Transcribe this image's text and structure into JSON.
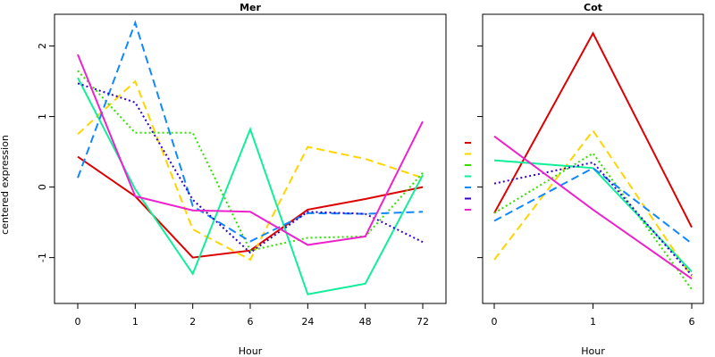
{
  "chart_data": {
    "type": "line",
    "ylabel": "centered expression",
    "ylim": [
      -1.65,
      2.45
    ],
    "yticks": [
      -1,
      0,
      1,
      2
    ],
    "legend_position": "between-panels",
    "panels": [
      {
        "title": "Mer",
        "xlabel": "Hour",
        "categories": [
          "0",
          "1",
          "2",
          "6",
          "24",
          "48",
          "72"
        ],
        "series": [
          {
            "color": "#dd0000",
            "dash": "solid",
            "values": [
              0.43,
              -0.13,
              -1.0,
              -0.9,
              -0.32,
              -0.17,
              0.0
            ]
          },
          {
            "color": "#ffd400",
            "dash": "long",
            "values": [
              0.75,
              1.5,
              -0.6,
              -1.03,
              0.57,
              0.4,
              0.13
            ]
          },
          {
            "color": "#33dd00",
            "dash": "dot",
            "values": [
              1.65,
              0.77,
              0.77,
              -0.9,
              -0.72,
              -0.7,
              0.2
            ]
          },
          {
            "color": "#11ee99",
            "dash": "solid",
            "values": [
              1.55,
              -0.03,
              -1.23,
              0.82,
              -1.52,
              -1.37,
              0.17
            ]
          },
          {
            "color": "#1188ff",
            "dash": "long",
            "values": [
              0.13,
              2.33,
              -0.27,
              -0.77,
              -0.37,
              -0.38,
              -0.35
            ]
          },
          {
            "color": "#3300cc",
            "dash": "dot",
            "values": [
              1.47,
              1.2,
              -0.18,
              -0.93,
              -0.35,
              -0.38,
              -0.78
            ]
          },
          {
            "color": "#ee22cc",
            "dash": "solid",
            "values": [
              1.88,
              -0.13,
              -0.33,
              -0.35,
              -0.82,
              -0.7,
              0.93
            ]
          }
        ]
      },
      {
        "title": "Cot",
        "xlabel": "Hour",
        "categories": [
          "0",
          "1",
          "6"
        ],
        "series": [
          {
            "color": "#dd0000",
            "dash": "solid",
            "values": [
              -0.37,
              2.18,
              -0.57
            ]
          },
          {
            "color": "#ffd400",
            "dash": "long",
            "values": [
              -1.03,
              0.8,
              -1.27
            ]
          },
          {
            "color": "#33dd00",
            "dash": "dot",
            "values": [
              -0.37,
              0.48,
              -1.45
            ]
          },
          {
            "color": "#11ee99",
            "dash": "solid",
            "values": [
              0.38,
              0.27,
              -1.2
            ]
          },
          {
            "color": "#1188ff",
            "dash": "long",
            "values": [
              -0.48,
              0.27,
              -0.8
            ]
          },
          {
            "color": "#3300cc",
            "dash": "dot",
            "values": [
              0.05,
              0.35,
              -1.25
            ]
          },
          {
            "color": "#ee22cc",
            "dash": "solid",
            "values": [
              0.72,
              -0.32,
              -1.3
            ]
          }
        ]
      }
    ]
  }
}
